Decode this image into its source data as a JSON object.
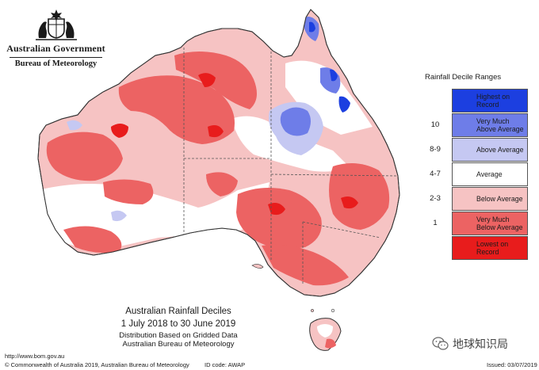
{
  "logo": {
    "government": "Australian Government",
    "bureau": "Bureau of Meteorology"
  },
  "legend": {
    "title": "Rainfall Decile Ranges",
    "rows": [
      {
        "range": "",
        "label_1": "Highest on",
        "label_2": "Record",
        "color": "#1c3fe0"
      },
      {
        "range": "10",
        "label_1": "Very Much",
        "label_2": "Above Average",
        "color": "#6e7de8"
      },
      {
        "range": "8-9",
        "label_1": "Above Average",
        "label_2": "",
        "color": "#c5c8f2"
      },
      {
        "range": "4-7",
        "label_1": "Average",
        "label_2": "",
        "color": "#ffffff"
      },
      {
        "range": "2-3",
        "label_1": "Below Average",
        "label_2": "",
        "color": "#f6c3c3"
      },
      {
        "range": "1",
        "label_1": "Very Much",
        "label_2": "Below Average",
        "color": "#ec6363"
      },
      {
        "range": "",
        "label_1": "Lowest on",
        "label_2": "Record",
        "color": "#e81c1c"
      }
    ]
  },
  "title_block": {
    "line_1": "Australian Rainfall Deciles",
    "line_2": "1 July 2018 to 30 June 2019",
    "line_3": "Distribution Based on Gridded Data",
    "line_4": "Australian Bureau of Meteorology"
  },
  "footer": {
    "url": "http://www.bom.gov.au",
    "copyright": "© Commonwealth of Australia 2019, Australian Bureau of Meteorology",
    "id_code": "ID code: AWAP",
    "issued": "Issued: 03/07/2019"
  },
  "watermark": {
    "text": "地球知识局"
  }
}
